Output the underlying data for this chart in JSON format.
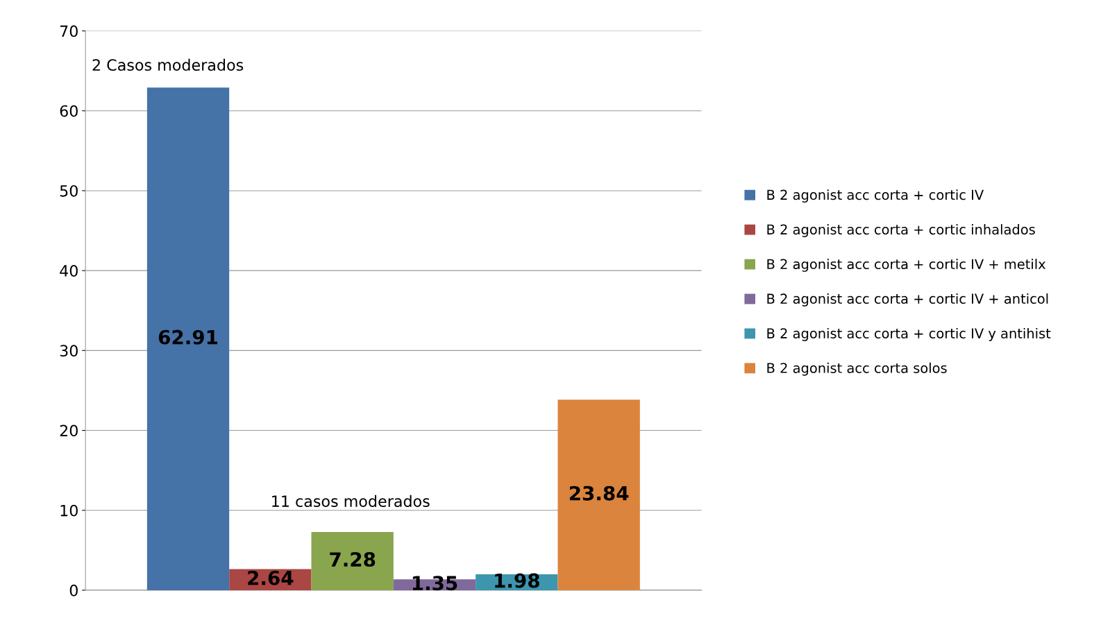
{
  "chart_data": {
    "type": "bar",
    "categories": [
      null
    ],
    "series": [
      {
        "name": "B 2 agonist acc corta + cortic IV",
        "color": "#4572a7",
        "values": [
          62.91
        ]
      },
      {
        "name": "B 2 agonist acc corta + cortic inhalados",
        "color": "#aa4643",
        "values": [
          2.64
        ]
      },
      {
        "name": "B 2 agonist acc corta + cortic IV + metilx",
        "color": "#89a54e",
        "values": [
          7.28
        ]
      },
      {
        "name": "B 2 agonist acc corta + cortic IV + anticol",
        "color": "#80699b",
        "values": [
          1.35
        ]
      },
      {
        "name": "B 2 agonist acc corta + cortic IV y antihist",
        "color": "#3d96ae",
        "values": [
          1.98
        ]
      },
      {
        "name": "B 2 agonist acc corta solos",
        "color": "#db843d",
        "values": [
          23.84
        ]
      }
    ],
    "ylim": [
      0,
      70
    ],
    "yticks": [
      0,
      10,
      20,
      30,
      40,
      50,
      60,
      70
    ],
    "grid": "y",
    "legend": "right",
    "data_labels": true,
    "annotations": [
      "2 Casos moderados",
      "11 casos moderados"
    ]
  }
}
